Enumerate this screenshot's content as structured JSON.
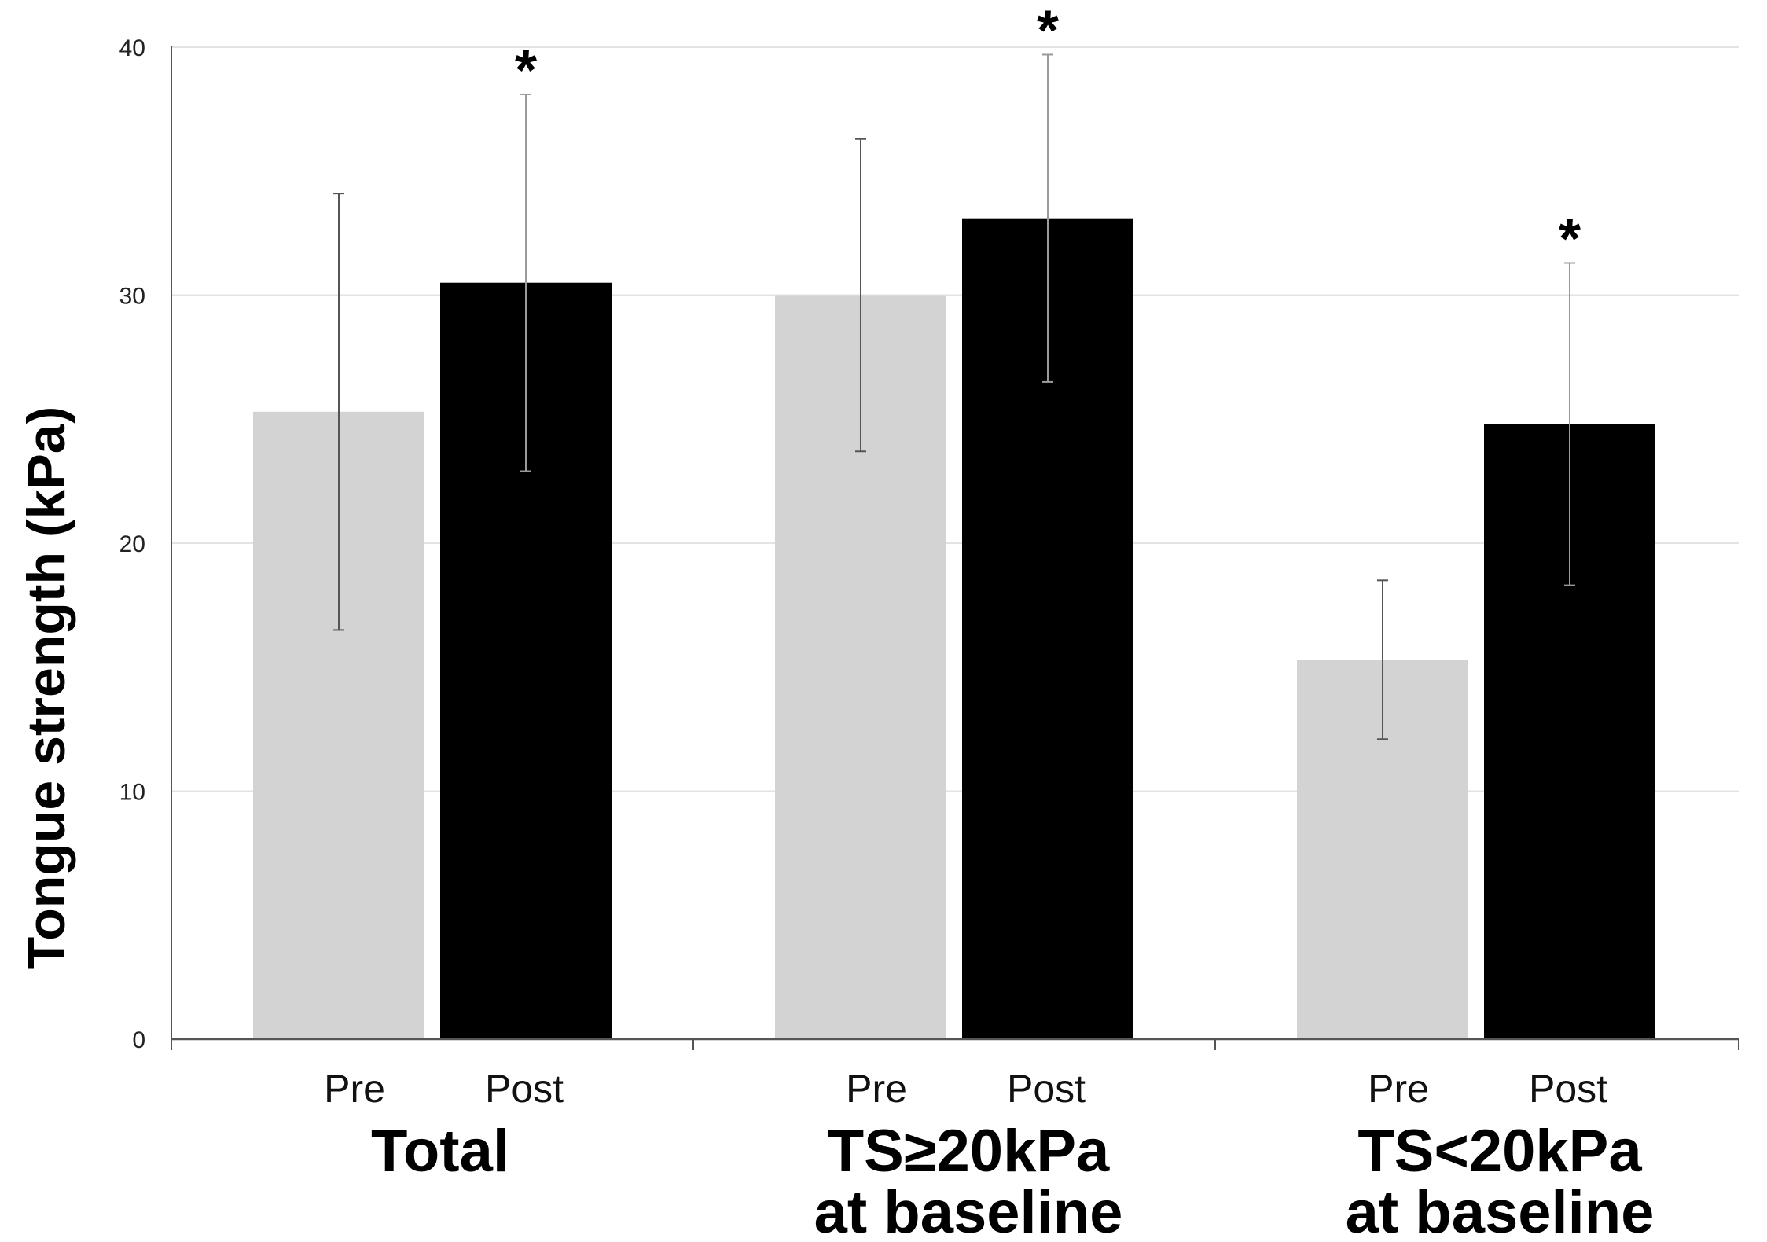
{
  "chart_data": {
    "type": "bar",
    "title": "",
    "xlabel": "",
    "ylabel": "Tongue strength (kPa)",
    "ylim": [
      0,
      40
    ],
    "yticks": [
      "0",
      "10",
      "20",
      "30",
      "40"
    ],
    "grid": true,
    "groups": [
      {
        "label_lines": [
          "Total"
        ],
        "pre": 25.3,
        "pre_err": 8.8,
        "post": 30.5,
        "post_err": 7.6,
        "post_sig": "*"
      },
      {
        "label_lines": [
          "TS≥20kPa",
          "at baseline"
        ],
        "pre": 30.0,
        "pre_err": 6.3,
        "post": 33.1,
        "post_err": 6.6,
        "post_sig": "*"
      },
      {
        "label_lines": [
          "TS<20kPa",
          "at baseline"
        ],
        "pre": 15.3,
        "pre_err": 3.2,
        "post": 24.8,
        "post_err": 6.5,
        "post_sig": "*"
      }
    ],
    "series": [
      {
        "name": "Pre",
        "color": "#d3d3d3"
      },
      {
        "name": "Post",
        "color": "#000000"
      }
    ]
  }
}
